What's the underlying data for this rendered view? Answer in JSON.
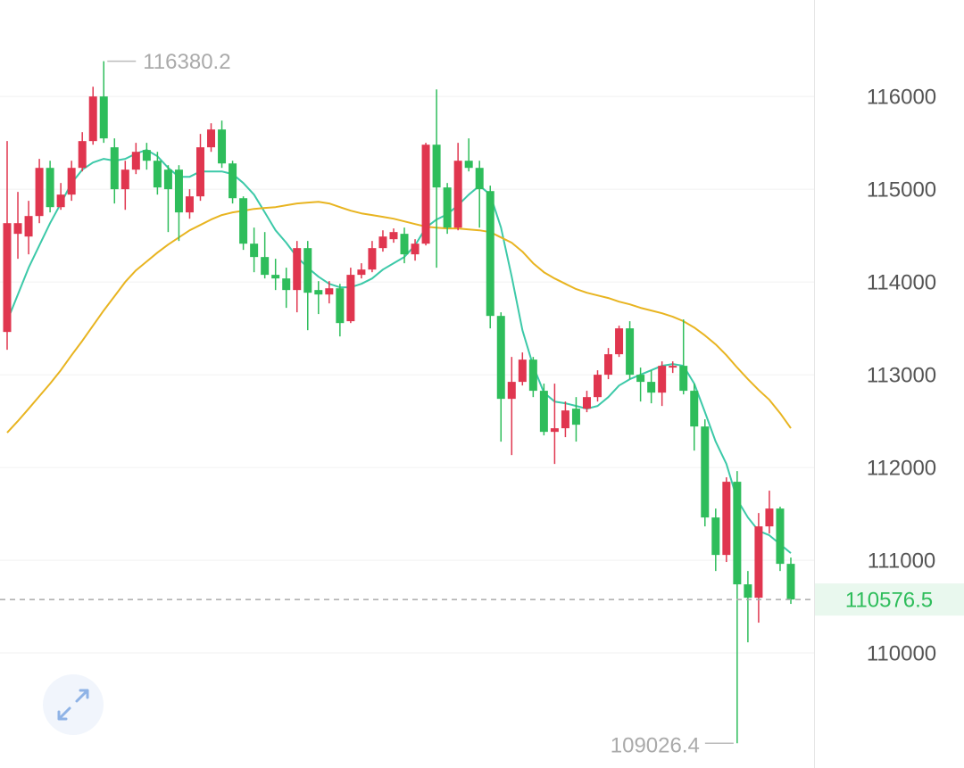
{
  "chart_data": {
    "type": "candlestick",
    "up_color": "#e0364f",
    "down_color": "#2ebd5b",
    "ylim": [
      108760,
      117040
    ],
    "yticks": [
      110000,
      111000,
      112000,
      113000,
      114000,
      115000,
      116000
    ],
    "grid": true,
    "last_price": 110576.5,
    "high_index": 9,
    "low_index": 68,
    "ohlc": [
      [
        113461,
        115519,
        113269,
        114634
      ],
      [
        114519,
        114971,
        114250,
        114634
      ],
      [
        114490,
        114875,
        114298,
        114711
      ],
      [
        114711,
        115327,
        114634,
        115230
      ],
      [
        115230,
        115307,
        114750,
        114807
      ],
      [
        114807,
        115067,
        114778,
        114942
      ],
      [
        114942,
        115307,
        114875,
        115230
      ],
      [
        115230,
        115615,
        115192,
        115519
      ],
      [
        115519,
        116105,
        115480,
        116000
      ],
      [
        116000,
        116380.2,
        115500,
        115548
      ],
      [
        115452,
        115548,
        114846,
        115000
      ],
      [
        115000,
        115307,
        114778,
        115211
      ],
      [
        115211,
        115500,
        115163,
        115403
      ],
      [
        115423,
        115500,
        115211,
        115307
      ],
      [
        115307,
        115403,
        114942,
        115019
      ],
      [
        115211,
        115259,
        114538,
        115000
      ],
      [
        115211,
        115259,
        114442,
        114750
      ],
      [
        114750,
        115000,
        114682,
        114923
      ],
      [
        114923,
        115596,
        114875,
        115452
      ],
      [
        115452,
        115711,
        115403,
        115644
      ],
      [
        115644,
        115740,
        115230,
        115278
      ],
      [
        115278,
        115307,
        114846,
        114903
      ],
      [
        114903,
        114923,
        114346,
        114413
      ],
      [
        114413,
        114586,
        114105,
        114269
      ],
      [
        114269,
        114538,
        114038,
        114077
      ],
      [
        114077,
        114250,
        113913,
        114038
      ],
      [
        114038,
        114154,
        113721,
        113913
      ],
      [
        113913,
        114442,
        113673,
        114365
      ],
      [
        114365,
        114442,
        113480,
        113884
      ],
      [
        113913,
        114009,
        113654,
        113865
      ],
      [
        113865,
        114009,
        113769,
        113932
      ],
      [
        113932,
        113980,
        113413,
        113557
      ],
      [
        113577,
        114154,
        113557,
        114077
      ],
      [
        114077,
        114202,
        114038,
        114134
      ],
      [
        114134,
        114442,
        114105,
        114365
      ],
      [
        114365,
        114557,
        114327,
        114490
      ],
      [
        114461,
        114577,
        114423,
        114538
      ],
      [
        114519,
        114586,
        114202,
        114298
      ],
      [
        114298,
        114461,
        114230,
        114413
      ],
      [
        114413,
        115500,
        114394,
        115480
      ],
      [
        115480,
        116076,
        114154,
        115019
      ],
      [
        115019,
        115067,
        114519,
        114586
      ],
      [
        114586,
        115500,
        114557,
        115307
      ],
      [
        115307,
        115548,
        115192,
        115230
      ],
      [
        115230,
        115307,
        114586,
        115000
      ],
      [
        114980,
        115038,
        113500,
        113634
      ],
      [
        113634,
        113673,
        112279,
        112740
      ],
      [
        112740,
        113192,
        112134,
        112923
      ],
      [
        112923,
        113240,
        112884,
        113163
      ],
      [
        113163,
        113192,
        112759,
        112827
      ],
      [
        112827,
        112904,
        112346,
        112384
      ],
      [
        112384,
        112904,
        112038,
        112423
      ],
      [
        112423,
        112711,
        112327,
        112615
      ],
      [
        112634,
        112759,
        112279,
        112461
      ],
      [
        112634,
        112827,
        112596,
        112759
      ],
      [
        112759,
        113048,
        112711,
        113000
      ],
      [
        113000,
        113288,
        112952,
        113221
      ],
      [
        113221,
        113529,
        113192,
        113500
      ],
      [
        113500,
        113577,
        112952,
        113000
      ],
      [
        113000,
        113077,
        112711,
        112923
      ],
      [
        112923,
        113048,
        112692,
        112807
      ],
      [
        112807,
        113144,
        112663,
        113096
      ],
      [
        113077,
        113144,
        113019,
        113096
      ],
      [
        113096,
        113596,
        112788,
        112827
      ],
      [
        112827,
        112904,
        112182,
        112442
      ],
      [
        112442,
        112519,
        111365,
        111461
      ],
      [
        111461,
        111557,
        110884,
        111057
      ],
      [
        111057,
        111894,
        110981,
        111846
      ],
      [
        111846,
        111961,
        109026.4,
        110740
      ],
      [
        110740,
        110884,
        110115,
        110596
      ],
      [
        110596,
        111509,
        110327,
        111365
      ],
      [
        111365,
        111750,
        111288,
        111557
      ],
      [
        111557,
        111577,
        110884,
        110961
      ],
      [
        110961,
        111029,
        110529,
        110576.5
      ]
    ],
    "ma": [
      {
        "color": "#3cc9a8",
        "values": [
          113577,
          113865,
          114154,
          114394,
          114634,
          114846,
          115067,
          115211,
          115288,
          115327,
          115307,
          115327,
          115384,
          115423,
          115355,
          115230,
          115134,
          115134,
          115192,
          115192,
          115192,
          115163,
          115067,
          114942,
          114750,
          114557,
          114423,
          114269,
          114154,
          114057,
          113980,
          113942,
          113942,
          113980,
          114038,
          114134,
          114202,
          114269,
          114394,
          114586,
          114673,
          114730,
          114827,
          114942,
          115038,
          114942,
          114586,
          114057,
          113480,
          113096,
          112807,
          112711,
          112692,
          112663,
          112634,
          112663,
          112759,
          112884,
          112952,
          113000,
          113048,
          113096,
          113115,
          113096,
          112904,
          112596,
          112279,
          112038,
          111654,
          111461,
          111317,
          111269,
          111173,
          111077
        ]
      },
      {
        "color": "#e8b420",
        "values": [
          112375,
          112500,
          112634,
          112769,
          112904,
          113048,
          113211,
          113365,
          113529,
          113692,
          113846,
          114000,
          114125,
          114221,
          114317,
          114403,
          114480,
          114557,
          114615,
          114673,
          114721,
          114750,
          114769,
          114788,
          114798,
          114807,
          114827,
          114846,
          114856,
          114865,
          114846,
          114807,
          114769,
          114740,
          114721,
          114702,
          114682,
          114653,
          114624,
          114596,
          114586,
          114577,
          114577,
          114567,
          114557,
          114538,
          114480,
          114423,
          114327,
          114202,
          114105,
          114038,
          113980,
          113923,
          113884,
          113855,
          113827,
          113788,
          113759,
          113721,
          113692,
          113663,
          113625,
          113577,
          113509,
          113423,
          113327,
          113211,
          113077,
          112952,
          112836,
          112730,
          112586,
          112423
        ]
      }
    ]
  }
}
